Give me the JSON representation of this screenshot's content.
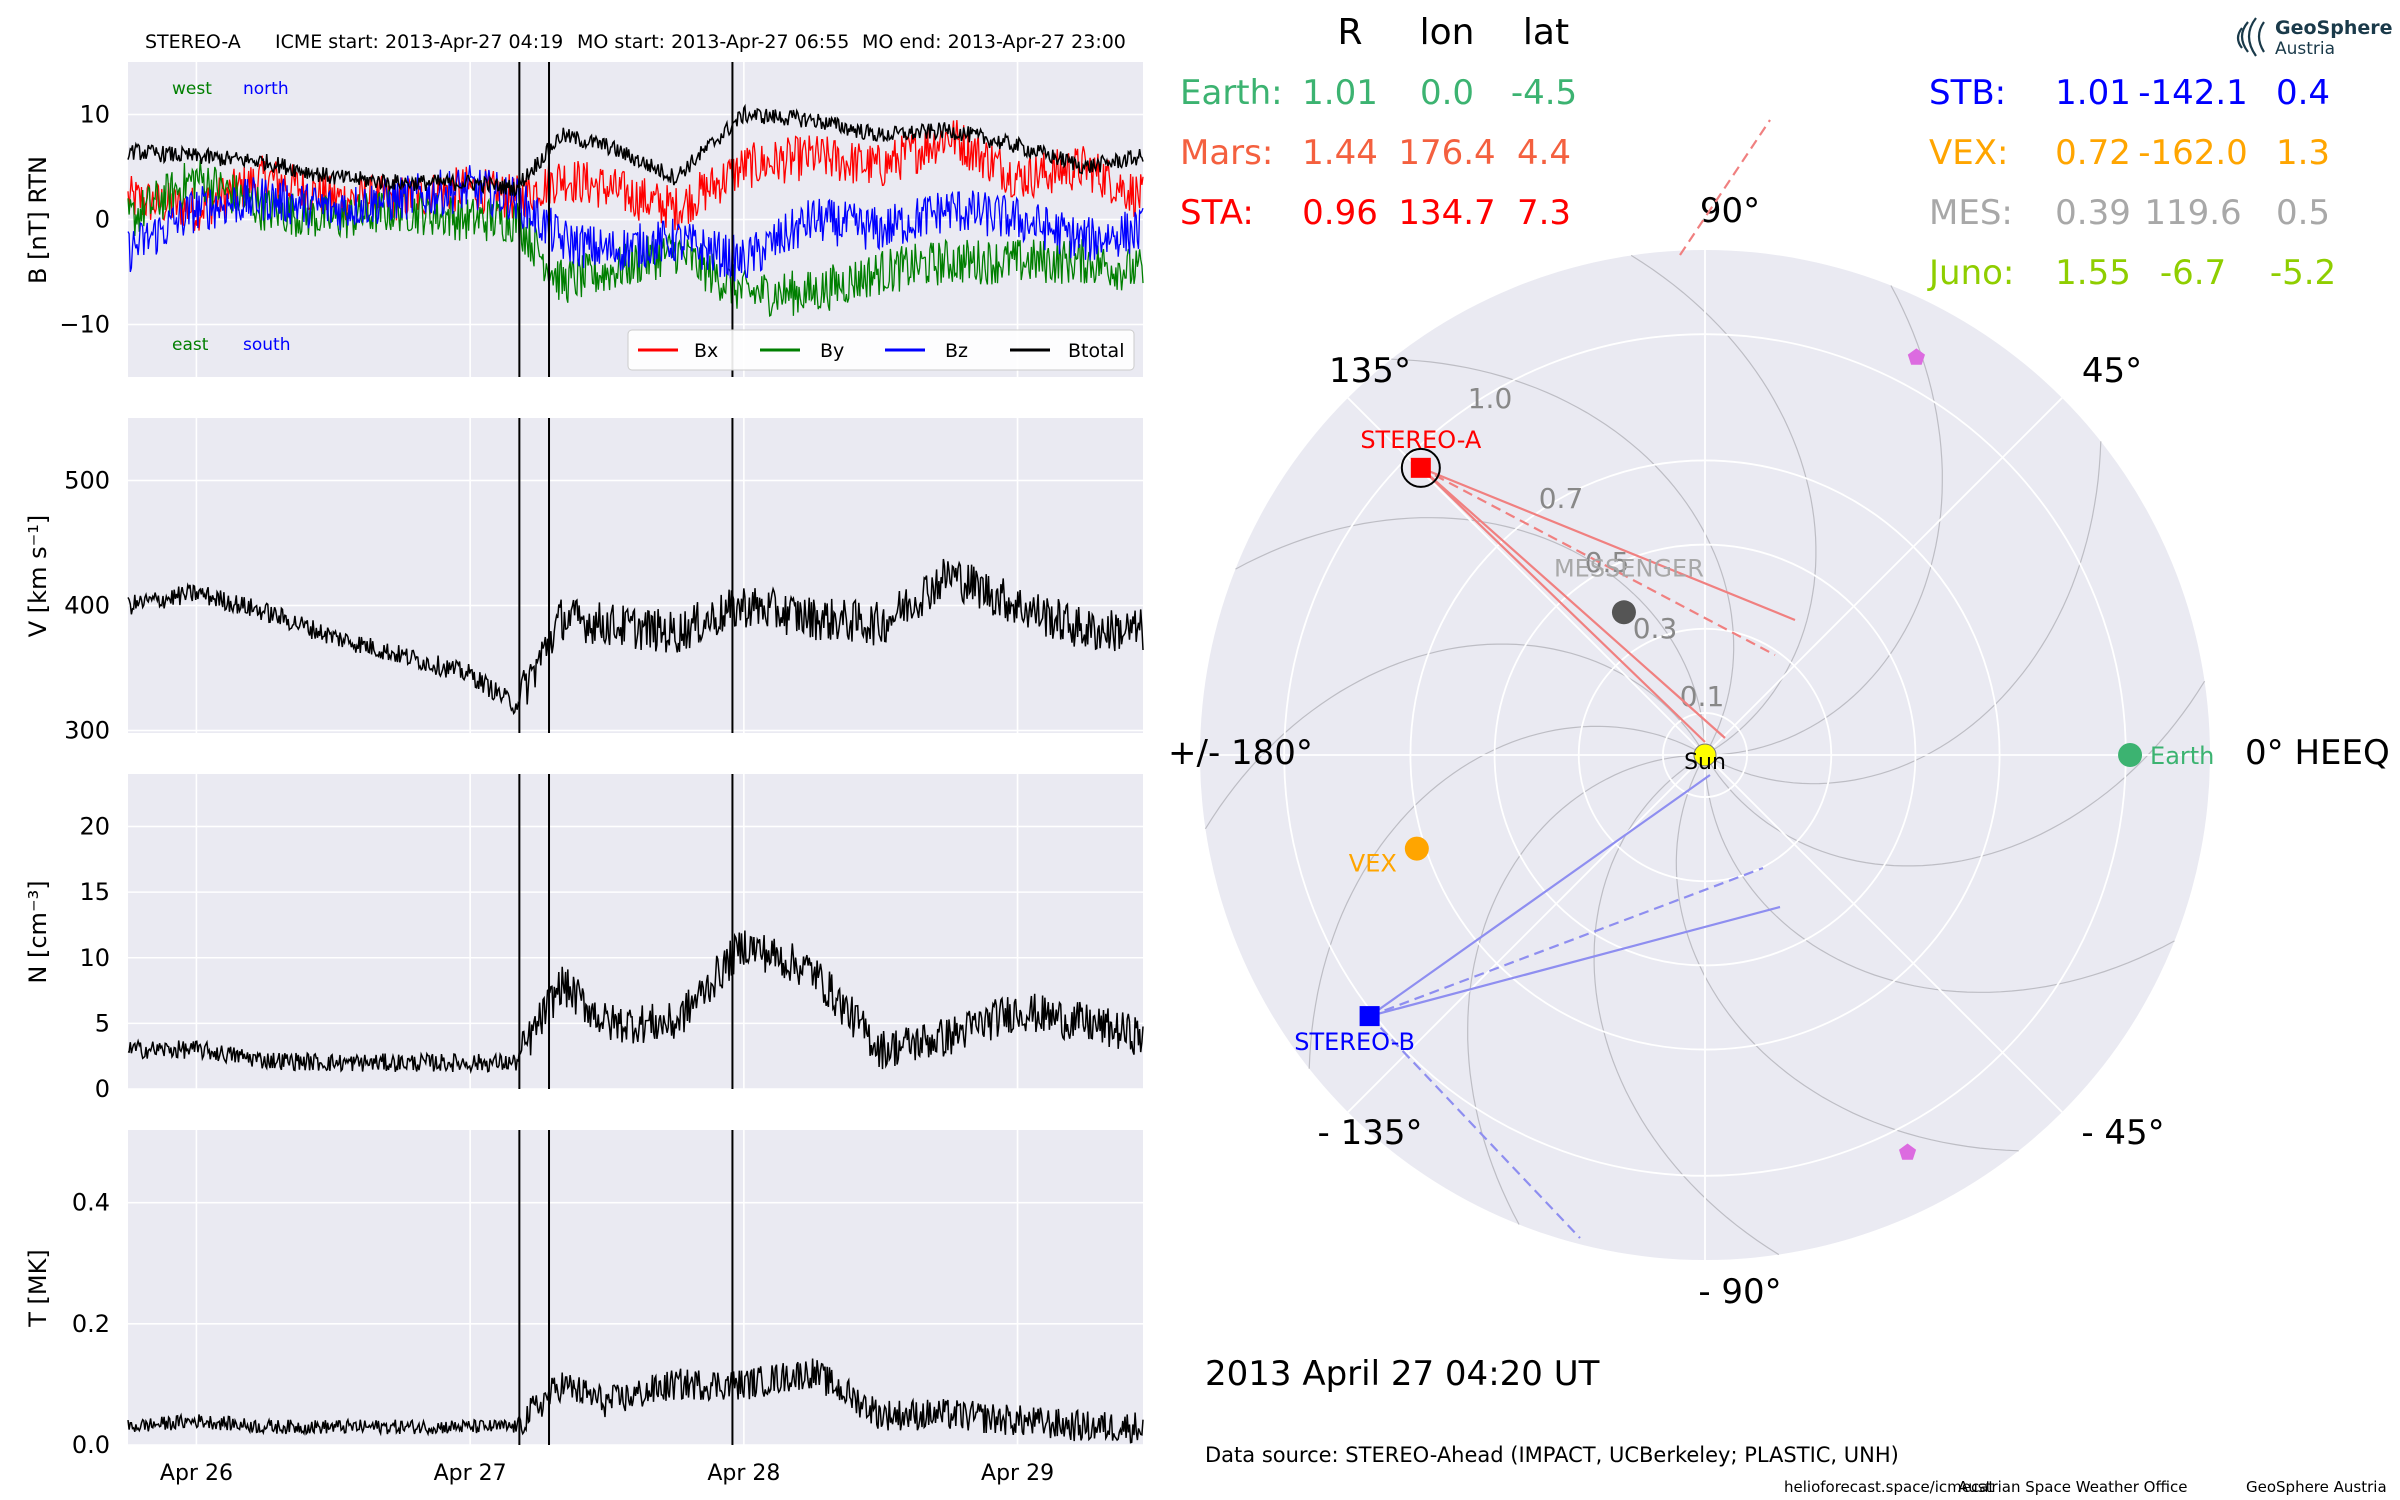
{
  "colors": {
    "panel_bg": "#eaeaf2",
    "grid": "#ffffff",
    "bx": "#ff0000",
    "by": "#007f00",
    "bz": "#0000ff",
    "btot": "#000000",
    "earth": "#3cb371",
    "mars": "#f4603f",
    "sta": "#ff0000",
    "stb": "#0000ff",
    "vex": "#ffa500",
    "mes": "#a8a8a8",
    "juno": "#8fce00",
    "sun": "#ffff00",
    "messenger_dot": "#555555",
    "pentagon": "#dc6be0"
  },
  "header": {
    "spacecraft": "STEREO-A",
    "icme_start": "ICME start: 2013-Apr-27 04:19",
    "mo_start": "MO start: 2013-Apr-27 06:55",
    "mo_end": "MO end: 2013-Apr-27 23:00"
  },
  "table": {
    "col_R": "R",
    "col_lon": "lon",
    "col_lat": "lat",
    "left_rows": [
      {
        "name": "Earth:",
        "r": "1.01",
        "lon": "0.0",
        "lat": "-4.5"
      },
      {
        "name": "Mars:",
        "r": "1.44",
        "lon": "176.4",
        "lat": "4.4"
      },
      {
        "name": "STA:",
        "r": "0.96",
        "lon": "134.7",
        "lat": "7.3"
      }
    ],
    "right_rows": [
      {
        "name": "STB:",
        "r": "1.01",
        "lon": "-142.1",
        "lat": "0.4"
      },
      {
        "name": "VEX:",
        "r": "0.72",
        "lon": "-162.0",
        "lat": "1.3"
      },
      {
        "name": "MES:",
        "r": "0.39",
        "lon": "119.6",
        "lat": "0.5"
      },
      {
        "name": "Juno:",
        "r": "1.55",
        "lon": "-6.7",
        "lat": "-5.2"
      }
    ]
  },
  "logo": {
    "line1": "GeoSphere",
    "line2": "Austria"
  },
  "polar": {
    "angle_labels": [
      "90°",
      "45°",
      "0° HEEQ",
      "- 45°",
      "- 90°",
      "- 135°",
      "+/- 180°",
      "135°"
    ],
    "radial_labels": [
      "1.0",
      "0.7",
      "0.5",
      "0.3",
      "0.1"
    ],
    "radial_values": [
      1.0,
      0.7,
      0.5,
      0.3,
      0.1
    ],
    "rmax": 1.2,
    "labels": {
      "earth": "Earth",
      "sta": "STEREO-A",
      "stb": "STEREO-B",
      "vex": "VEX",
      "messenger": "MESSENGER",
      "sun": "Sun"
    },
    "bodies": [
      {
        "key": "earth",
        "r": 1.01,
        "lon": 0.0
      },
      {
        "key": "sta",
        "r": 0.96,
        "lon": 134.7
      },
      {
        "key": "stb",
        "r": 1.01,
        "lon": -142.1
      },
      {
        "key": "vex",
        "r": 0.72,
        "lon": -162.0
      },
      {
        "key": "messenger",
        "r": 0.39,
        "lon": 119.6
      }
    ],
    "pentagons": [
      {
        "r": 1.07,
        "lon": 62
      },
      {
        "r": 1.06,
        "lon": -63
      }
    ]
  },
  "datetime": "2013 April 27  04:20 UT",
  "source": "Data source: STEREO-Ahead (IMPACT, UCBerkeley; PLASTIC, UNH)",
  "footer": {
    "a": "helioforecast.space/icmecat",
    "b": "Austrian Space Weather Office",
    "c": "GeoSphere Austria"
  },
  "chart_data": [
    {
      "type": "line",
      "title": "",
      "ylabel": "B [nT] RTN",
      "ylim": [
        -15,
        15
      ],
      "yticks": [
        -10,
        0,
        10
      ],
      "ytick_labels": [
        "−10",
        "0",
        "10"
      ],
      "x_range_days": [
        "2013-04-25 18:00",
        "2013-04-29 11:00"
      ],
      "xtick_labels": [
        "Apr 26",
        "Apr 27",
        "Apr 28",
        "Apr 29"
      ],
      "annotations": {
        "west": "west",
        "north": "north",
        "east": "east",
        "south": "south"
      },
      "event_lines": [
        "2013-04-27 04:19",
        "2013-04-27 06:55",
        "2013-04-27 23:00"
      ],
      "legend": "bottom-right",
      "grid": true,
      "series": [
        {
          "name": "Bx",
          "x": [
            "04-25 18:00",
            "04-26 00:00",
            "04-26 06:00",
            "04-26 12:00",
            "04-26 18:00",
            "04-27 00:00",
            "04-27 04:00",
            "04-27 08:00",
            "04-27 12:00",
            "04-27 18:00",
            "04-28 00:00",
            "04-28 06:00",
            "04-28 12:00",
            "04-28 18:00",
            "04-29 00:00",
            "04-29 06:00",
            "04-29 11:00"
          ],
          "values": [
            2,
            1,
            4,
            2,
            2,
            3,
            2,
            4,
            3,
            1,
            5,
            6,
            5,
            8,
            4,
            5,
            2
          ]
        },
        {
          "name": "By",
          "x": [
            "04-25 18:00",
            "04-26 00:00",
            "04-26 06:00",
            "04-26 12:00",
            "04-26 18:00",
            "04-27 00:00",
            "04-27 04:00",
            "04-27 08:00",
            "04-27 12:00",
            "04-27 18:00",
            "04-28 00:00",
            "04-28 06:00",
            "04-28 12:00",
            "04-28 18:00",
            "04-29 00:00",
            "04-29 06:00",
            "04-29 11:00"
          ],
          "values": [
            0,
            4,
            1,
            0,
            1,
            0,
            0,
            -6,
            -5,
            -3,
            -7,
            -7,
            -5,
            -4,
            -4,
            -4,
            -5
          ]
        },
        {
          "name": "Bz",
          "x": [
            "04-25 18:00",
            "04-26 00:00",
            "04-26 06:00",
            "04-26 12:00",
            "04-26 18:00",
            "04-27 00:00",
            "04-27 04:00",
            "04-27 08:00",
            "04-27 12:00",
            "04-27 18:00",
            "04-28 00:00",
            "04-28 06:00",
            "04-28 12:00",
            "04-28 18:00",
            "04-29 00:00",
            "04-29 06:00",
            "04-29 11:00"
          ],
          "values": [
            -3,
            1,
            2,
            1,
            2,
            3,
            2,
            -2,
            -3,
            -2,
            -4,
            0,
            -1,
            1,
            0,
            -2,
            -1
          ]
        },
        {
          "name": "Btotal",
          "x": [
            "04-25 18:00",
            "04-26 00:00",
            "04-26 06:00",
            "04-26 12:00",
            "04-26 18:00",
            "04-27 00:00",
            "04-27 04:00",
            "04-27 08:00",
            "04-27 12:00",
            "04-27 18:00",
            "04-28 00:00",
            "04-28 06:00",
            "04-28 12:00",
            "04-28 18:00",
            "04-29 00:00",
            "04-29 06:00",
            "04-29 11:00"
          ],
          "values": [
            6.5,
            6,
            5.5,
            4,
            3.5,
            3.5,
            3,
            8,
            7,
            4,
            10,
            9.5,
            8,
            8.5,
            7,
            5,
            6
          ]
        }
      ]
    },
    {
      "type": "line",
      "title": "",
      "ylabel": "V [km s⁻¹]",
      "ylim": [
        298,
        550
      ],
      "yticks": [
        300,
        400,
        500
      ],
      "ytick_labels": [
        "300",
        "400",
        "500"
      ],
      "xtick_labels": [
        "Apr 26",
        "Apr 27",
        "Apr 28",
        "Apr 29"
      ],
      "event_lines": [
        "2013-04-27 04:19",
        "2013-04-27 06:55",
        "2013-04-27 23:00"
      ],
      "grid": true,
      "series": [
        {
          "name": "",
          "x": [
            "04-25 18:00",
            "04-26 00:00",
            "04-26 06:00",
            "04-26 12:00",
            "04-26 18:00",
            "04-27 00:00",
            "04-27 04:00",
            "04-27 08:00",
            "04-27 12:00",
            "04-27 18:00",
            "04-28 00:00",
            "04-28 06:00",
            "04-28 12:00",
            "04-28 18:00",
            "04-29 00:00",
            "04-29 06:00",
            "04-29 11:00"
          ],
          "values": [
            400,
            410,
            395,
            375,
            360,
            345,
            320,
            390,
            385,
            378,
            400,
            390,
            385,
            425,
            400,
            380,
            380
          ]
        }
      ]
    },
    {
      "type": "line",
      "title": "",
      "ylabel": "N [cm⁻³]",
      "ylim": [
        0,
        24
      ],
      "yticks": [
        0,
        5,
        10,
        15,
        20
      ],
      "ytick_labels": [
        "0",
        "5",
        "10",
        "15",
        "20"
      ],
      "xtick_labels": [
        "Apr 26",
        "Apr 27",
        "Apr 28",
        "Apr 29"
      ],
      "event_lines": [
        "2013-04-27 04:19",
        "2013-04-27 06:55",
        "2013-04-27 23:00"
      ],
      "grid": true,
      "series": [
        {
          "name": "",
          "x": [
            "04-25 18:00",
            "04-26 00:00",
            "04-26 06:00",
            "04-26 12:00",
            "04-26 18:00",
            "04-27 00:00",
            "04-27 04:00",
            "04-27 08:00",
            "04-27 12:00",
            "04-27 18:00",
            "04-28 00:00",
            "04-28 06:00",
            "04-28 12:00",
            "04-28 18:00",
            "04-29 00:00",
            "04-29 06:00",
            "04-29 11:00"
          ],
          "values": [
            3,
            3,
            2.2,
            2,
            2,
            2,
            2,
            8,
            5,
            5,
            11,
            9,
            3,
            4,
            6,
            5,
            4
          ]
        }
      ]
    },
    {
      "type": "line",
      "title": "",
      "ylabel": "T [MK]",
      "ylim": [
        0,
        0.52
      ],
      "yticks": [
        0.0,
        0.2,
        0.4
      ],
      "ytick_labels": [
        "0.0",
        "0.2",
        "0.4"
      ],
      "xtick_labels": [
        "Apr 26",
        "Apr 27",
        "Apr 28",
        "Apr 29"
      ],
      "event_lines": [
        "2013-04-27 04:19",
        "2013-04-27 06:55",
        "2013-04-27 23:00"
      ],
      "grid": true,
      "series": [
        {
          "name": "",
          "x": [
            "04-25 18:00",
            "04-26 00:00",
            "04-26 06:00",
            "04-26 12:00",
            "04-26 18:00",
            "04-27 00:00",
            "04-27 04:00",
            "04-27 08:00",
            "04-27 12:00",
            "04-27 18:00",
            "04-28 00:00",
            "04-28 06:00",
            "04-28 12:00",
            "04-28 18:00",
            "04-29 00:00",
            "04-29 06:00",
            "04-29 11:00"
          ],
          "values": [
            0.03,
            0.04,
            0.03,
            0.03,
            0.03,
            0.03,
            0.03,
            0.1,
            0.07,
            0.1,
            0.1,
            0.12,
            0.05,
            0.05,
            0.04,
            0.03,
            0.03
          ]
        }
      ]
    }
  ]
}
